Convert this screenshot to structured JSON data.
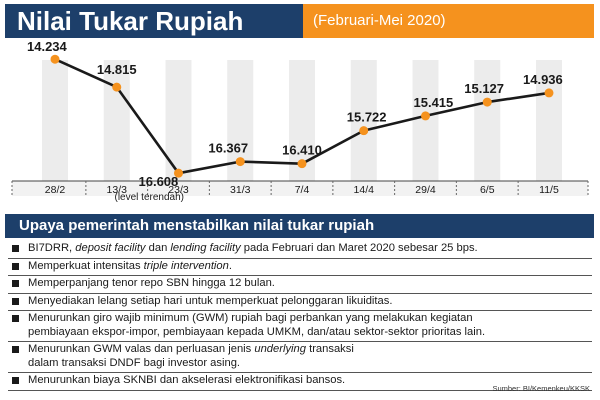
{
  "header": {
    "title": "Nilai Tukar Rupiah",
    "subtitle": "(Februari-Mei 2020)"
  },
  "chart_data": {
    "type": "line",
    "x": [
      "28/2",
      "13/3",
      "23/3",
      "31/3",
      "7/4",
      "14/4",
      "29/4",
      "6/5",
      "11/5"
    ],
    "series": [
      {
        "values": [
          14234,
          14815,
          16608,
          16367,
          16410,
          15722,
          15415,
          15127,
          14936
        ]
      }
    ],
    "data_labels": [
      "14.234",
      "14.815",
      "16.608",
      "16.367",
      "16.410",
      "15.722",
      "15.415",
      "15.127",
      "14.936"
    ],
    "annotation": "(level terendah)",
    "ylim": [
      14000,
      17000
    ],
    "invert_y": true,
    "colors": {
      "line": "#1a1a1a",
      "marker": "#f5921e",
      "column": "#ececec"
    }
  },
  "policies": {
    "title": "Upaya pemerintah menstabilkan nilai tukar rupiah",
    "items": [
      {
        "parts": [
          {
            "text": "BI7DRR, "
          },
          {
            "text": "deposit facility",
            "em": true
          },
          {
            "text": " dan "
          },
          {
            "text": "lending facility",
            "em": true
          },
          {
            "text": " pada Februari dan Maret 2020 sebesar 25 bps."
          }
        ]
      },
      {
        "parts": [
          {
            "text": "Memperkuat intensitas "
          },
          {
            "text": "triple intervention",
            "em": true
          },
          {
            "text": "."
          }
        ]
      },
      {
        "parts": [
          {
            "text": "Memperpanjang tenor repo SBN hingga 12 bulan."
          }
        ]
      },
      {
        "parts": [
          {
            "text": "Menyediakan lelang setiap hari untuk memperkuat pelonggaran likuiditas."
          }
        ]
      },
      {
        "parts": [
          {
            "text": "Menurunkan giro wajib minimum (GWM) rupiah bagi perbankan yang melakukan kegiatan"
          }
        ],
        "line2": [
          {
            "text": "pembiayaan ekspor-impor, pembiayaan kepada UMKM, dan/atau sektor-sektor prioritas lain."
          }
        ]
      },
      {
        "parts": [
          {
            "text": "Menurunkan GWM valas dan perluasan jenis "
          },
          {
            "text": "underlying",
            "em": true
          },
          {
            "text": " transaksi"
          }
        ],
        "line2": [
          {
            "text": "dalam transaksi DNDF bagi investor asing."
          }
        ]
      },
      {
        "parts": [
          {
            "text": "Menurunkan biaya SKNBI dan akselerasi elektronifikasi bansos."
          }
        ]
      }
    ]
  },
  "source": "Sumber: BI/Kemenkeu/KKSK"
}
